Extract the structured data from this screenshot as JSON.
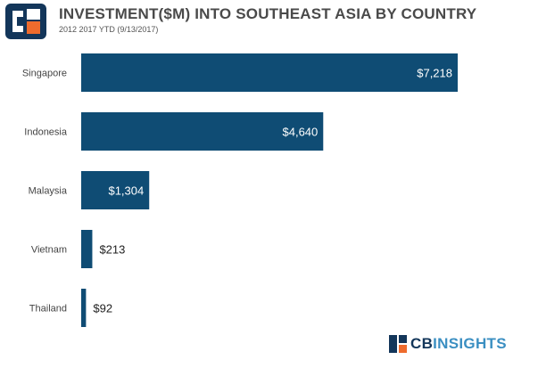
{
  "header": {
    "title": "INVESTMENT($M) INTO SOUTHEAST ASIA BY COUNTRY",
    "subtitle": "2012    2017 YTD (9/13/2017)"
  },
  "brand": {
    "prefix": "CB",
    "suffix": "INSIGHTS"
  },
  "colors": {
    "bar": "#0f4c74",
    "label_text": "#444444",
    "orange": "#ee6b2d",
    "navy": "#13365a"
  },
  "chart_data": {
    "type": "bar",
    "orientation": "horizontal",
    "title": "INVESTMENT($M) INTO SOUTHEAST ASIA BY COUNTRY",
    "subtitle": "2012    2017 YTD (9/13/2017)",
    "categories": [
      "Singapore",
      "Indonesia",
      "Malaysia",
      "Vietnam",
      "Thailand"
    ],
    "values": [
      7218,
      4640,
      1304,
      213,
      92
    ],
    "value_labels": [
      "$7,218",
      "$4,640",
      "$1,304",
      "$213",
      "$92"
    ],
    "xlim": [
      0,
      7218
    ],
    "xlabel": "",
    "ylabel": "",
    "grid": false,
    "legend": "none"
  }
}
